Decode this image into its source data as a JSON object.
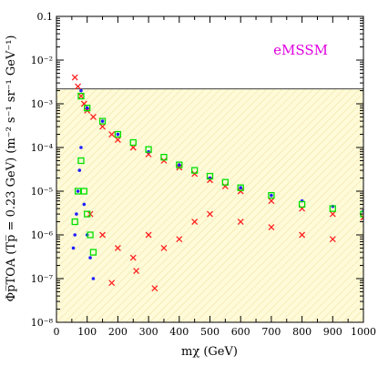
{
  "chart_data": {
    "type": "scatter",
    "title": "",
    "annotation": "eMSSM",
    "annotation_color": "#e000e0",
    "xlabel": "mχ (GeV)",
    "ylabel": "Φp̅TOA (Tp̅ = 0.23 GeV)   (m⁻² s⁻¹ sr⁻¹ GeV⁻¹)",
    "xlim": [
      0,
      1000
    ],
    "ylim": [
      1e-08,
      0.1
    ],
    "yscale": "log",
    "x_ticks": [
      0,
      100,
      200,
      300,
      400,
      500,
      600,
      700,
      800,
      900,
      1000
    ],
    "x_tick_labels": [
      "0",
      "100",
      "200",
      "300",
      "400",
      "500",
      "600",
      "700",
      "800",
      "900",
      "1000"
    ],
    "y_ticks": [
      1e-08,
      1e-07,
      1e-06,
      1e-05,
      0.0001,
      0.001,
      0.01,
      0.1
    ],
    "y_tick_labels": [
      "10⁻⁸",
      "10⁻⁷",
      "10⁻⁶",
      "10⁻⁵",
      "10⁻⁴",
      "10⁻³",
      "10⁻²",
      "0.1"
    ],
    "grid": false,
    "excluded_region": {
      "y_lower": 0.0022,
      "color": "#ffffff"
    },
    "allowed_region_color": "#fffbd8",
    "hatch_color": "#f0e2a8",
    "series": [
      {
        "color": "#ff2020",
        "marker": "x",
        "points": [
          [
            60,
            0.004
          ],
          [
            70,
            0.0025
          ],
          [
            80,
            0.0015
          ],
          [
            90,
            0.001
          ],
          [
            100,
            0.0007
          ],
          [
            120,
            0.0005
          ],
          [
            150,
            0.0003
          ],
          [
            180,
            0.0002
          ],
          [
            200,
            0.00015
          ],
          [
            250,
            0.0001
          ],
          [
            300,
            7e-05
          ],
          [
            350,
            5e-05
          ],
          [
            400,
            3.5e-05
          ],
          [
            450,
            2.5e-05
          ],
          [
            500,
            1.8e-05
          ],
          [
            550,
            1.3e-05
          ],
          [
            600,
            1e-05
          ],
          [
            700,
            6e-06
          ],
          [
            800,
            4e-06
          ],
          [
            900,
            3e-06
          ],
          [
            1000,
            2.5e-06
          ],
          [
            110,
            3e-06
          ],
          [
            150,
            1e-06
          ],
          [
            200,
            5e-07
          ],
          [
            250,
            3e-07
          ],
          [
            300,
            1e-06
          ],
          [
            350,
            5e-07
          ],
          [
            400,
            8e-07
          ],
          [
            450,
            2e-06
          ],
          [
            500,
            3e-06
          ],
          [
            600,
            2e-06
          ],
          [
            700,
            1.5e-06
          ],
          [
            800,
            1e-06
          ],
          [
            900,
            8e-07
          ],
          [
            180,
            8e-08
          ],
          [
            260,
            1.5e-07
          ],
          [
            320,
            6e-08
          ]
        ]
      },
      {
        "color": "#2020ff",
        "marker": "dot",
        "points": [
          [
            55,
            5e-07
          ],
          [
            60,
            1e-06
          ],
          [
            65,
            3e-06
          ],
          [
            70,
            1e-05
          ],
          [
            75,
            3e-05
          ],
          [
            80,
            0.0001
          ],
          [
            90,
            5e-06
          ],
          [
            100,
            1e-06
          ],
          [
            110,
            3e-07
          ],
          [
            120,
            1e-07
          ],
          [
            80,
            0.002
          ],
          [
            100,
            0.0008
          ],
          [
            150,
            0.0004
          ],
          [
            200,
            0.0002
          ],
          [
            300,
            8e-05
          ],
          [
            400,
            4e-05
          ],
          [
            500,
            2e-05
          ],
          [
            600,
            1.2e-05
          ],
          [
            700,
            8e-06
          ],
          [
            800,
            6e-06
          ],
          [
            900,
            4.5e-06
          ],
          [
            1000,
            3.5e-06
          ]
        ]
      },
      {
        "color": "#00e000",
        "marker": "square",
        "points": [
          [
            60,
            2e-06
          ],
          [
            70,
            1e-05
          ],
          [
            80,
            5e-05
          ],
          [
            90,
            1e-05
          ],
          [
            100,
            3e-06
          ],
          [
            110,
            1e-06
          ],
          [
            120,
            4e-07
          ],
          [
            80,
            0.0015
          ],
          [
            100,
            0.0008
          ],
          [
            150,
            0.0004
          ],
          [
            200,
            0.0002
          ],
          [
            250,
            0.00013
          ],
          [
            300,
            9e-05
          ],
          [
            350,
            6e-05
          ],
          [
            400,
            4e-05
          ],
          [
            450,
            3e-05
          ],
          [
            500,
            2.2e-05
          ],
          [
            550,
            1.6e-05
          ],
          [
            600,
            1.2e-05
          ],
          [
            700,
            8e-06
          ],
          [
            800,
            5e-06
          ],
          [
            900,
            4e-06
          ],
          [
            1000,
            3e-06
          ]
        ]
      }
    ]
  }
}
